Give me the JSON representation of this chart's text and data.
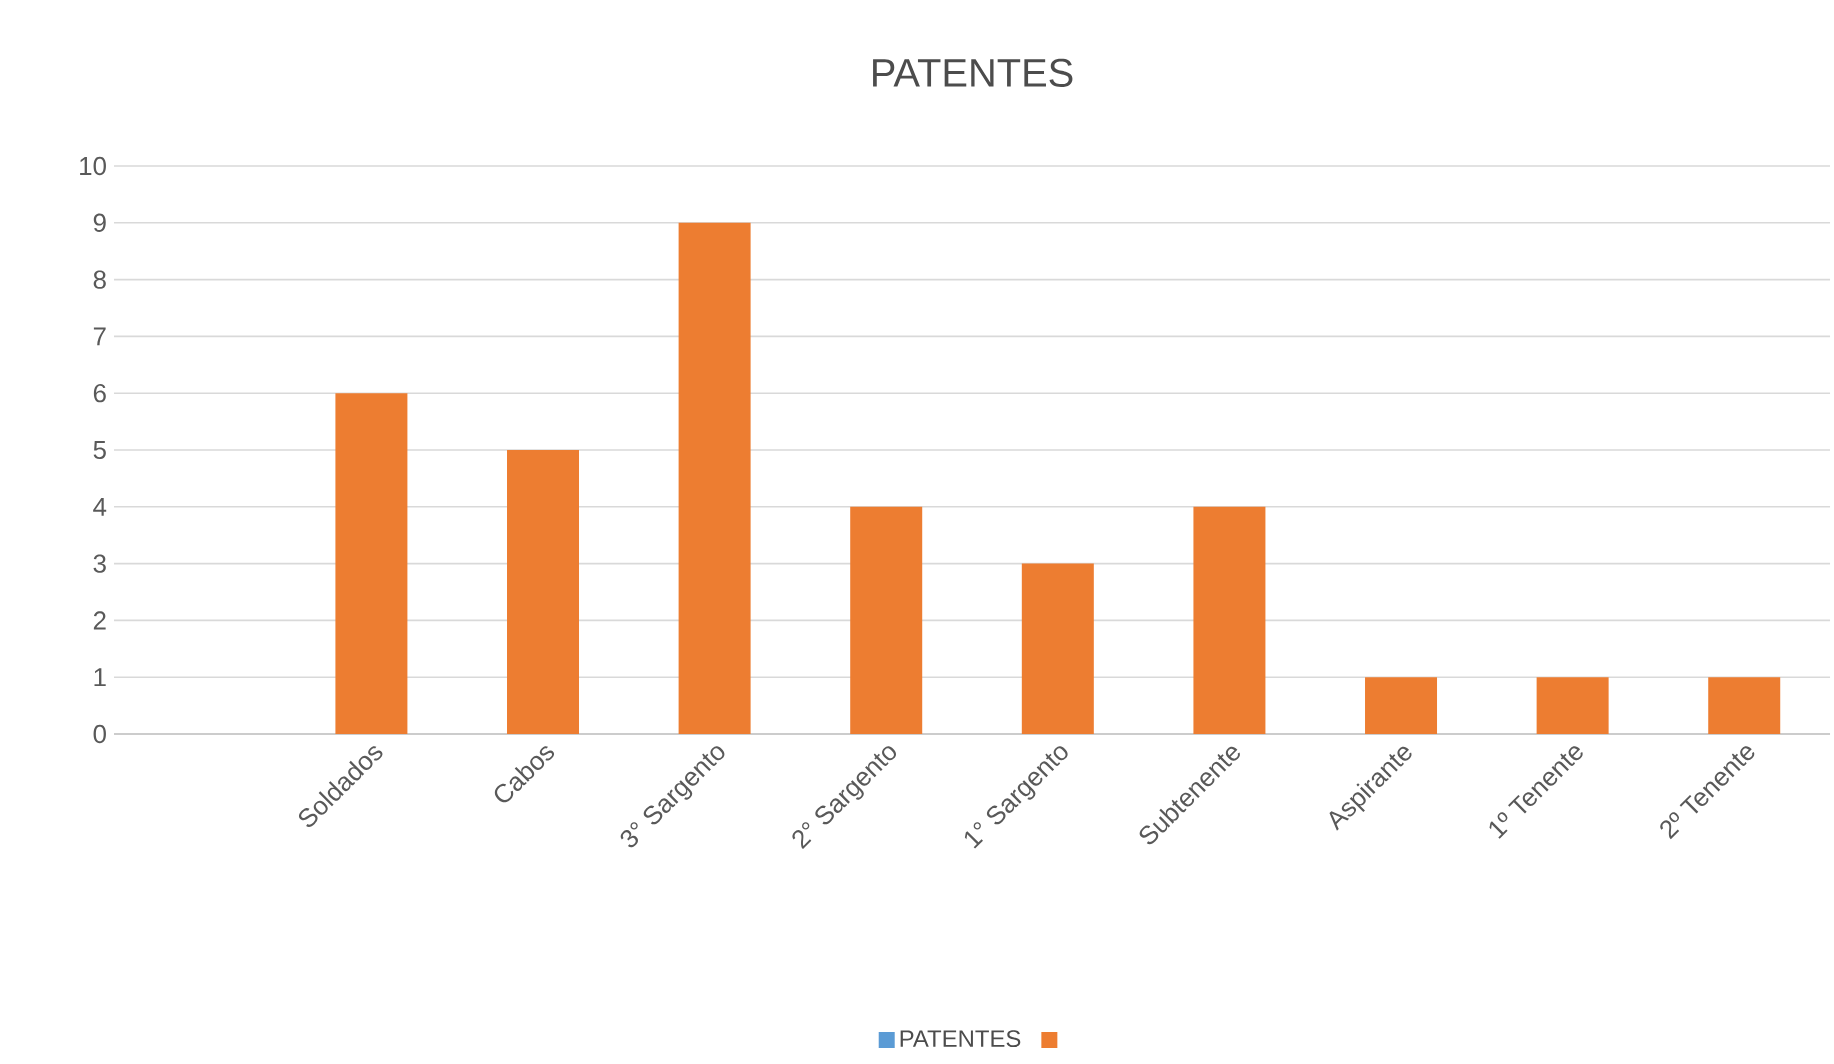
{
  "chart_data": {
    "type": "bar",
    "title": "PATENTES",
    "categories": [
      null,
      "Soldados",
      "Cabos",
      "3° Sargento",
      "2° Sargento",
      "1° Sargento",
      "Subtenente",
      "Aspirante",
      "1º Tenente",
      "2º Tenente"
    ],
    "series": [
      {
        "name": "PATENTES",
        "color": "#5b9bd5",
        "values": [
          null,
          null,
          null,
          null,
          null,
          null,
          null,
          null,
          null,
          null
        ]
      },
      {
        "color": "#ed7d31",
        "values": [
          null,
          6,
          5,
          9,
          4,
          3,
          4,
          1,
          1,
          1
        ]
      }
    ],
    "ylim": [
      0,
      10
    ],
    "yticks": [
      0,
      1,
      2,
      3,
      4,
      5,
      6,
      7,
      8,
      9,
      10
    ],
    "grid": "y",
    "legend": "bottom"
  }
}
